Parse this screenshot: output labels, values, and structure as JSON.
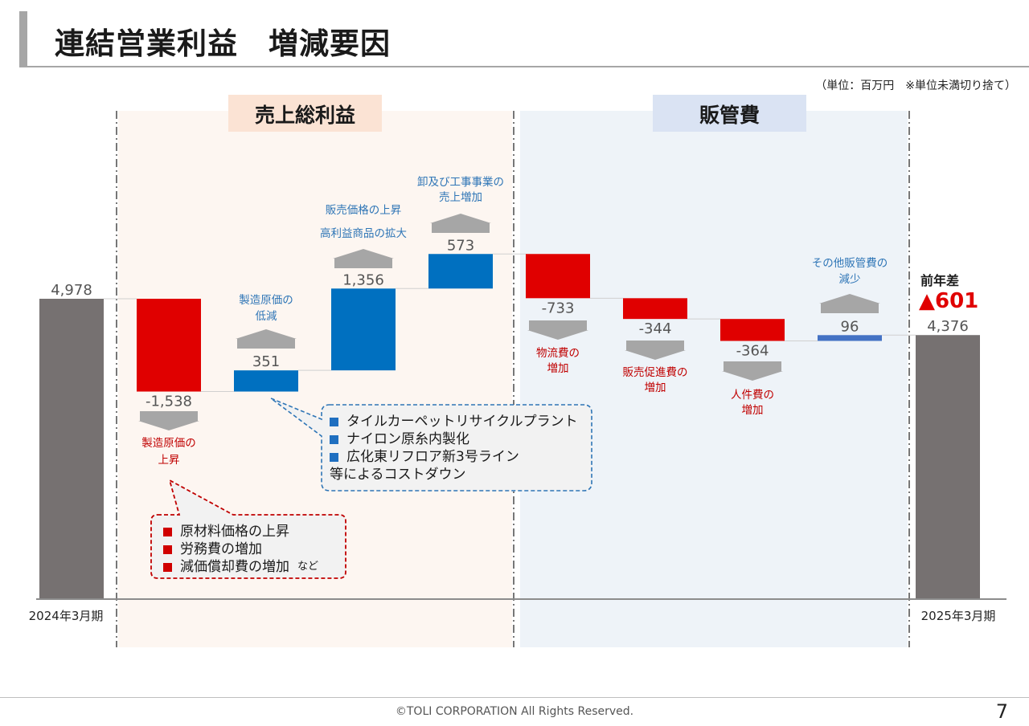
{
  "header": {
    "title": "連結営業利益　増減要因",
    "unit_note": "（単位：百万円　※単位未満切り捨て）"
  },
  "sections": {
    "gross_profit": "売上総利益",
    "sga": "販管費"
  },
  "chart_data": {
    "type": "waterfall",
    "categories": [
      "2024年3月期",
      "製造原価の上昇",
      "製造原価の低減",
      "販売価格の上昇・高利益商品の拡大",
      "卸及び工事事業の売上増加",
      "物流費の増加",
      "販売促進費の増加",
      "人件費の増加",
      "その他販管費の減少",
      "2025年3月期"
    ],
    "values": [
      4978,
      -1538,
      351,
      1356,
      573,
      -733,
      -344,
      -364,
      96,
      4376
    ],
    "value_labels": [
      "4,978",
      "-1,538",
      "351",
      "1,356",
      "573",
      "-733",
      "-344",
      "-364",
      "96",
      "4,376"
    ],
    "kinds": [
      "total",
      "decrease",
      "increase",
      "increase",
      "increase",
      "decrease",
      "decrease",
      "decrease",
      "increase",
      "total"
    ],
    "ylim": [
      0,
      5800
    ],
    "colors": {
      "total": "#767171",
      "decrease": "#e00000",
      "increase": "#0070c0",
      "increase_sga": "#4472c4"
    },
    "factor_labels": [
      {
        "bar": 1,
        "lines": [
          "製造原価の",
          "上昇"
        ],
        "color": "#c00000"
      },
      {
        "bar": 2,
        "lines": [
          "製造原価の",
          "低減"
        ],
        "color": "#2e75b6"
      },
      {
        "bar": 3,
        "lines": [
          "販売価格の上昇",
          "高利益商品の拡大"
        ],
        "color": "#2e75b6"
      },
      {
        "bar": 4,
        "lines": [
          "卸及び工事事業の",
          "売上増加"
        ],
        "color": "#2e75b6"
      },
      {
        "bar": 5,
        "lines": [
          "物流費の",
          "増加"
        ],
        "color": "#c00000"
      },
      {
        "bar": 6,
        "lines": [
          "販売促進費の",
          "増加"
        ],
        "color": "#c00000"
      },
      {
        "bar": 7,
        "lines": [
          "人件費の",
          "増加"
        ],
        "color": "#c00000"
      },
      {
        "bar": 8,
        "lines": [
          "その他販管費の",
          "減少"
        ],
        "color": "#2e75b6"
      }
    ],
    "yoy": {
      "label": "前年差",
      "value": "▲601",
      "color": "#e00000"
    }
  },
  "callouts": {
    "cost_down": {
      "items": [
        "タイルカーペットリサイクルプラント",
        "ナイロン原糸内製化",
        "広化東リフロア新3号ライン"
      ],
      "suffix": "等によるコストダウン"
    },
    "cost_up": {
      "items": [
        "原材料価格の上昇",
        "労務費の増加",
        "減価償却費の増加"
      ],
      "suffix": "など"
    }
  },
  "footer": {
    "copyright": "©TOLI CORPORATION All Rights Reserved.",
    "page": "7"
  }
}
